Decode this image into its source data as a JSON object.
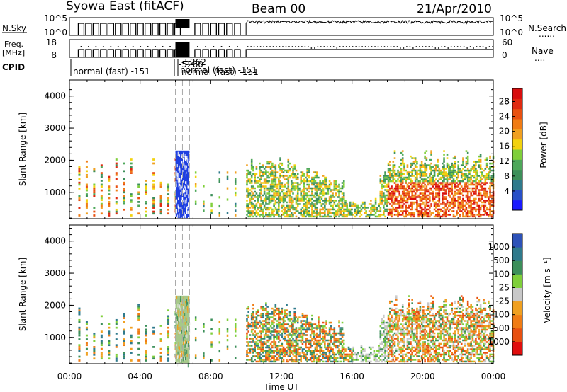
{
  "header": {
    "station": "Syowa East (fitACF)",
    "beam": "Beam 00",
    "date": "21/Apr/2010"
  },
  "panels": {
    "nsky": {
      "left_label": "N.Sky",
      "right_label": "N.Search",
      "right_dots": "......",
      "left_ticks": [
        "10^5",
        "10^0"
      ],
      "right_ticks": [
        "10^5",
        "10^0"
      ]
    },
    "freq": {
      "left_label_1": "Freq.",
      "left_label_2": "[MHz]",
      "right_label": "Nave",
      "right_dots": "....",
      "left_ticks": [
        "18",
        "8"
      ],
      "right_ticks": [
        "60",
        "0"
      ]
    },
    "cpid": {
      "label": "CPID",
      "entries": [
        "normal (fast) -151",
        "-5260",
        "-5262",
        "normal (fast) -151",
        "normal (fast) -151"
      ]
    }
  },
  "chart_data": [
    {
      "type": "heatmap",
      "title": "",
      "xlabel": "Time UT",
      "ylabel": "Slant Range [km]",
      "x_ticks": [
        "00:00",
        "04:00",
        "08:00",
        "12:00",
        "16:00",
        "20:00",
        "00:00"
      ],
      "y_ticks": [
        "1000",
        "2000",
        "3000",
        "4000"
      ],
      "xlim_hours": [
        0,
        24
      ],
      "ylim_km": [
        180,
        4500
      ],
      "colorbar": {
        "label": "Power [dB]",
        "ticks": [
          "4",
          "8",
          "12",
          "16",
          "20",
          "24",
          "28"
        ],
        "colors": [
          "#1a1aff",
          "#2850c8",
          "#2f7a8c",
          "#3c8f5a",
          "#4ea85a",
          "#7fcf3a",
          "#f2d20e",
          "#f0a020",
          "#f07c14",
          "#e85010",
          "#e02a10",
          "#d80e0e"
        ]
      }
    },
    {
      "type": "heatmap",
      "title": "",
      "xlabel": "Time UT",
      "ylabel": "Slant Range [km]",
      "x_ticks": [
        "00:00",
        "04:00",
        "08:00",
        "12:00",
        "16:00",
        "20:00",
        "00:00"
      ],
      "y_ticks": [
        "1000",
        "2000",
        "3000",
        "4000"
      ],
      "xlim_hours": [
        0,
        24
      ],
      "ylim_km": [
        180,
        4500
      ],
      "colorbar": {
        "label": "Velocity [m s⁻¹]",
        "ticks": [
          "1000",
          "500",
          "100",
          "25",
          "-25",
          "-100",
          "-500",
          "-1000"
        ],
        "colors": [
          "#2d52b8",
          "#2f7a8c",
          "#3c8f5a",
          "#7fcf3a",
          "#c8c8c8",
          "#f0a020",
          "#f07c14",
          "#e85010",
          "#e00e0e"
        ]
      }
    }
  ],
  "special_mode_hours": [
    6.0,
    6.4,
    6.8
  ]
}
